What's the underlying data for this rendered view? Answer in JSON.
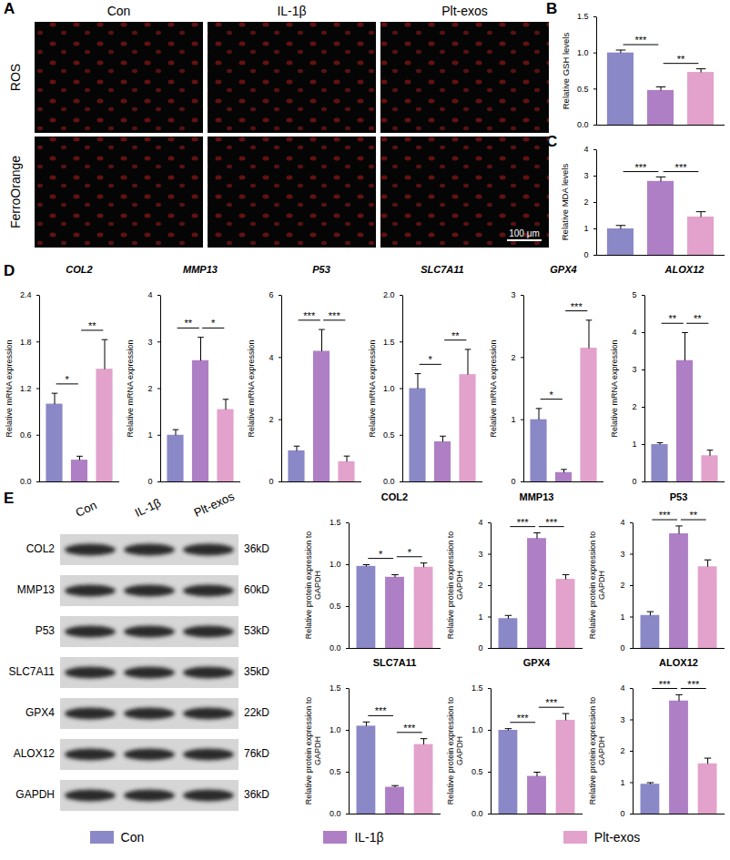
{
  "panel_labels": [
    "A",
    "B",
    "C",
    "D",
    "E"
  ],
  "panel_A": {
    "columns": [
      "Con",
      "IL-1β",
      "Plt-exos"
    ],
    "rows": [
      "ROS",
      "FerroOrange"
    ],
    "scale_bar": "100 μm"
  },
  "panel_E_blot": {
    "lanes": [
      "Con",
      "IL-1β",
      "Plt-exos"
    ],
    "rows": [
      {
        "protein": "COL2",
        "size": "36kD"
      },
      {
        "protein": "MMP13",
        "size": "60kD"
      },
      {
        "protein": "P53",
        "size": "53kD"
      },
      {
        "protein": "SLC7A11",
        "size": "35kD"
      },
      {
        "protein": "GPX4",
        "size": "22kD"
      },
      {
        "protein": "ALOX12",
        "size": "76kD"
      },
      {
        "protein": "GAPDH",
        "size": "36kD"
      }
    ]
  },
  "legend": {
    "position": "bottom",
    "entries": [
      {
        "name": "Con",
        "color": "#8b88c7"
      },
      {
        "name": "IL-1β",
        "color": "#ae7fc4"
      },
      {
        "name": "Plt-exos",
        "color": "#e2a2cc"
      }
    ]
  },
  "chart_data": [
    {
      "type": "bar",
      "y_label": "Relative GSH levels",
      "categories": [
        "Con",
        "IL-1β",
        "Plt-exos"
      ],
      "colors": [
        "#8b88c7",
        "#ae7fc4",
        "#e2a2cc"
      ],
      "values": [
        1.0,
        0.48,
        0.73
      ],
      "errors": [
        0.04,
        0.05,
        0.05
      ],
      "ylim": [
        0,
        1.5
      ],
      "yticks": [
        {
          "value": 0,
          "label": "0.0"
        },
        {
          "value": 0.5,
          "label": "0.5"
        },
        {
          "value": 1,
          "label": "1.0"
        },
        {
          "value": 1.5,
          "label": "1.5"
        }
      ],
      "significance": [
        {
          "from": 0,
          "to": 1,
          "label": "***"
        },
        {
          "from": 1,
          "to": 2,
          "label": "**"
        }
      ],
      "tick_labels": "y"
    },
    {
      "type": "bar",
      "y_label": "Relative MDA levels",
      "categories": [
        "Con",
        "IL-1β",
        "Plt-exos"
      ],
      "colors": [
        "#8b88c7",
        "#ae7fc4",
        "#e2a2cc"
      ],
      "values": [
        1.0,
        2.8,
        1.45
      ],
      "errors": [
        0.13,
        0.17,
        0.2
      ],
      "ylim": [
        0,
        4
      ],
      "yticks": [
        0,
        1,
        2,
        3,
        4
      ],
      "significance": [
        {
          "from": 0,
          "to": 1,
          "label": "***"
        },
        {
          "from": 1,
          "to": 2,
          "label": "***"
        }
      ],
      "tick_labels": "y"
    },
    {
      "type": "bar",
      "title": "COL2",
      "y_label": "Relative mRNA expression",
      "categories": [
        "Con",
        "IL-1β",
        "Plt-exos"
      ],
      "colors": [
        "#8b88c7",
        "#ae7fc4",
        "#e2a2cc"
      ],
      "values": [
        1.0,
        0.28,
        1.45
      ],
      "errors": [
        0.14,
        0.05,
        0.38
      ],
      "ylim": [
        0,
        2.4
      ],
      "yticks": [
        {
          "value": 0,
          "label": "0.0"
        },
        {
          "value": 0.6,
          "label": "0.6"
        },
        {
          "value": 1.2,
          "label": "1.2"
        },
        {
          "value": 1.8,
          "label": "1.8"
        },
        {
          "value": 2.4,
          "label": "2.4"
        }
      ],
      "significance": [
        {
          "from": 0,
          "to": 1,
          "label": "*"
        },
        {
          "from": 1,
          "to": 2,
          "label": "**"
        }
      ],
      "tick_labels": "y"
    },
    {
      "type": "bar",
      "title": "MMP13",
      "y_label": "Relative mRNA expression",
      "categories": [
        "Con",
        "IL-1β",
        "Plt-exos"
      ],
      "colors": [
        "#8b88c7",
        "#ae7fc4",
        "#e2a2cc"
      ],
      "values": [
        1.0,
        2.6,
        1.55
      ],
      "errors": [
        0.12,
        0.5,
        0.22
      ],
      "ylim": [
        0,
        4
      ],
      "yticks": [
        0,
        1,
        2,
        3,
        4
      ],
      "significance": [
        {
          "from": 0,
          "to": 1,
          "label": "**"
        },
        {
          "from": 1,
          "to": 2,
          "label": "*"
        }
      ],
      "tick_labels": "y"
    },
    {
      "type": "bar",
      "title": "P53",
      "y_label": "Relative mRNA expression",
      "categories": [
        "Con",
        "IL-1β",
        "Plt-exos"
      ],
      "colors": [
        "#8b88c7",
        "#ae7fc4",
        "#e2a2cc"
      ],
      "values": [
        1.0,
        4.2,
        0.65
      ],
      "errors": [
        0.15,
        0.7,
        0.18
      ],
      "ylim": [
        0,
        6
      ],
      "yticks": [
        0,
        2,
        4,
        6
      ],
      "significance": [
        {
          "from": 0,
          "to": 1,
          "label": "***"
        },
        {
          "from": 1,
          "to": 2,
          "label": "***"
        }
      ],
      "tick_labels": "y"
    },
    {
      "type": "bar",
      "title": "SLC7A11",
      "y_label": "Relative mRNA expression",
      "categories": [
        "Con",
        "IL-1β",
        "Plt-exos"
      ],
      "colors": [
        "#8b88c7",
        "#ae7fc4",
        "#e2a2cc"
      ],
      "values": [
        1.0,
        0.43,
        1.15
      ],
      "errors": [
        0.16,
        0.06,
        0.27
      ],
      "ylim": [
        0,
        2
      ],
      "yticks": [
        {
          "value": 0,
          "label": "0.0"
        },
        {
          "value": 0.5,
          "label": "0.5"
        },
        {
          "value": 1,
          "label": "1.0"
        },
        {
          "value": 1.5,
          "label": "1.5"
        },
        {
          "value": 2,
          "label": "2.0"
        }
      ],
      "significance": [
        {
          "from": 0,
          "to": 1,
          "label": "*"
        },
        {
          "from": 1,
          "to": 2,
          "label": "**"
        }
      ],
      "tick_labels": "y"
    },
    {
      "type": "bar",
      "title": "GPX4",
      "y_label": "Relative mRNA expression",
      "categories": [
        "Con",
        "IL-1β",
        "Plt-exos"
      ],
      "colors": [
        "#8b88c7",
        "#ae7fc4",
        "#e2a2cc"
      ],
      "values": [
        1.0,
        0.15,
        2.15
      ],
      "errors": [
        0.18,
        0.05,
        0.45
      ],
      "ylim": [
        0,
        3
      ],
      "yticks": [
        0,
        1,
        2,
        3
      ],
      "significance": [
        {
          "from": 0,
          "to": 1,
          "label": "*"
        },
        {
          "from": 1,
          "to": 2,
          "label": "***"
        }
      ],
      "tick_labels": "y"
    },
    {
      "type": "bar",
      "title": "ALOX12",
      "y_label": "Relative mRNA expression",
      "categories": [
        "Con",
        "IL-1β",
        "Plt-exos"
      ],
      "colors": [
        "#8b88c7",
        "#ae7fc4",
        "#e2a2cc"
      ],
      "values": [
        1.0,
        3.25,
        0.7
      ],
      "errors": [
        0.05,
        0.75,
        0.15
      ],
      "ylim": [
        0,
        5
      ],
      "yticks": [
        0,
        1,
        2,
        3,
        4,
        5
      ],
      "significance": [
        {
          "from": 0,
          "to": 1,
          "label": "**"
        },
        {
          "from": 1,
          "to": 2,
          "label": "**"
        }
      ],
      "tick_labels": "y"
    },
    {
      "type": "bar",
      "title": "COL2",
      "y_label": "Relative protein expression to GAPDH",
      "categories": [
        "Con",
        "IL-1β",
        "Plt-exos"
      ],
      "colors": [
        "#8b88c7",
        "#ae7fc4",
        "#e2a2cc"
      ],
      "values": [
        0.98,
        0.85,
        0.97
      ],
      "errors": [
        0.02,
        0.03,
        0.05
      ],
      "ylim": [
        0,
        1.5
      ],
      "yticks": [
        {
          "value": 0,
          "label": "0.0"
        },
        {
          "value": 0.5,
          "label": "0.5"
        },
        {
          "value": 1,
          "label": "1.0"
        },
        {
          "value": 1.5,
          "label": "1.5"
        }
      ],
      "significance": [
        {
          "from": 0,
          "to": 1,
          "label": "*"
        },
        {
          "from": 1,
          "to": 2,
          "label": "*"
        }
      ],
      "tick_labels": "y"
    },
    {
      "type": "bar",
      "title": "MMP13",
      "y_label": "Relative protein expression to GAPDH",
      "categories": [
        "Con",
        "IL-1β",
        "Plt-exos"
      ],
      "colors": [
        "#8b88c7",
        "#ae7fc4",
        "#e2a2cc"
      ],
      "values": [
        0.95,
        3.5,
        2.2
      ],
      "errors": [
        0.1,
        0.18,
        0.15
      ],
      "ylim": [
        0,
        4
      ],
      "yticks": [
        0,
        1,
        2,
        3,
        4
      ],
      "significance": [
        {
          "from": 0,
          "to": 1,
          "label": "***"
        },
        {
          "from": 1,
          "to": 2,
          "label": "***"
        }
      ],
      "tick_labels": "y"
    },
    {
      "type": "bar",
      "title": "P53",
      "y_label": "Relative protein expression to GAPDH",
      "categories": [
        "Con",
        "IL-1β",
        "Plt-exos"
      ],
      "colors": [
        "#8b88c7",
        "#ae7fc4",
        "#e2a2cc"
      ],
      "values": [
        1.05,
        3.65,
        2.6
      ],
      "errors": [
        0.12,
        0.25,
        0.22
      ],
      "ylim": [
        0,
        4
      ],
      "yticks": [
        0,
        1,
        2,
        3,
        4
      ],
      "significance": [
        {
          "from": 0,
          "to": 1,
          "label": "***"
        },
        {
          "from": 1,
          "to": 2,
          "label": "**"
        }
      ],
      "tick_labels": "y"
    },
    {
      "type": "bar",
      "title": "SLC7A11",
      "y_label": "Relative protein expression to GAPDH",
      "categories": [
        "Con",
        "IL-1β",
        "Plt-exos"
      ],
      "colors": [
        "#8b88c7",
        "#ae7fc4",
        "#e2a2cc"
      ],
      "values": [
        1.05,
        0.32,
        0.83
      ],
      "errors": [
        0.05,
        0.02,
        0.07
      ],
      "ylim": [
        0,
        1.5
      ],
      "yticks": [
        {
          "value": 0,
          "label": "0.0"
        },
        {
          "value": 0.5,
          "label": "0.5"
        },
        {
          "value": 1,
          "label": "1.0"
        },
        {
          "value": 1.5,
          "label": "1.5"
        }
      ],
      "significance": [
        {
          "from": 0,
          "to": 1,
          "label": "***"
        },
        {
          "from": 1,
          "to": 2,
          "label": "***"
        }
      ],
      "tick_labels": "y"
    },
    {
      "type": "bar",
      "title": "GPX4",
      "y_label": "Relative protein expression to GAPDH",
      "categories": [
        "Con",
        "IL-1β",
        "Plt-exos"
      ],
      "colors": [
        "#8b88c7",
        "#ae7fc4",
        "#e2a2cc"
      ],
      "values": [
        1.0,
        0.45,
        1.12
      ],
      "errors": [
        0.02,
        0.05,
        0.08
      ],
      "ylim": [
        0,
        1.5
      ],
      "yticks": [
        {
          "value": 0,
          "label": "0.0"
        },
        {
          "value": 0.5,
          "label": "0.5"
        },
        {
          "value": 1,
          "label": "1.0"
        },
        {
          "value": 1.5,
          "label": "1.5"
        }
      ],
      "significance": [
        {
          "from": 0,
          "to": 1,
          "label": "***"
        },
        {
          "from": 1,
          "to": 2,
          "label": "***"
        }
      ],
      "tick_labels": "y"
    },
    {
      "type": "bar",
      "title": "ALOX12",
      "y_label": "Relative protein expression to GAPDH",
      "categories": [
        "Con",
        "IL-1β",
        "Plt-exos"
      ],
      "colors": [
        "#8b88c7",
        "#ae7fc4",
        "#e2a2cc"
      ],
      "values": [
        0.95,
        3.6,
        1.6
      ],
      "errors": [
        0.05,
        0.2,
        0.18
      ],
      "ylim": [
        0,
        4
      ],
      "yticks": [
        0,
        1,
        2,
        3,
        4
      ],
      "significance": [
        {
          "from": 0,
          "to": 1,
          "label": "***"
        },
        {
          "from": 1,
          "to": 2,
          "label": "***"
        }
      ],
      "tick_labels": "y"
    }
  ]
}
